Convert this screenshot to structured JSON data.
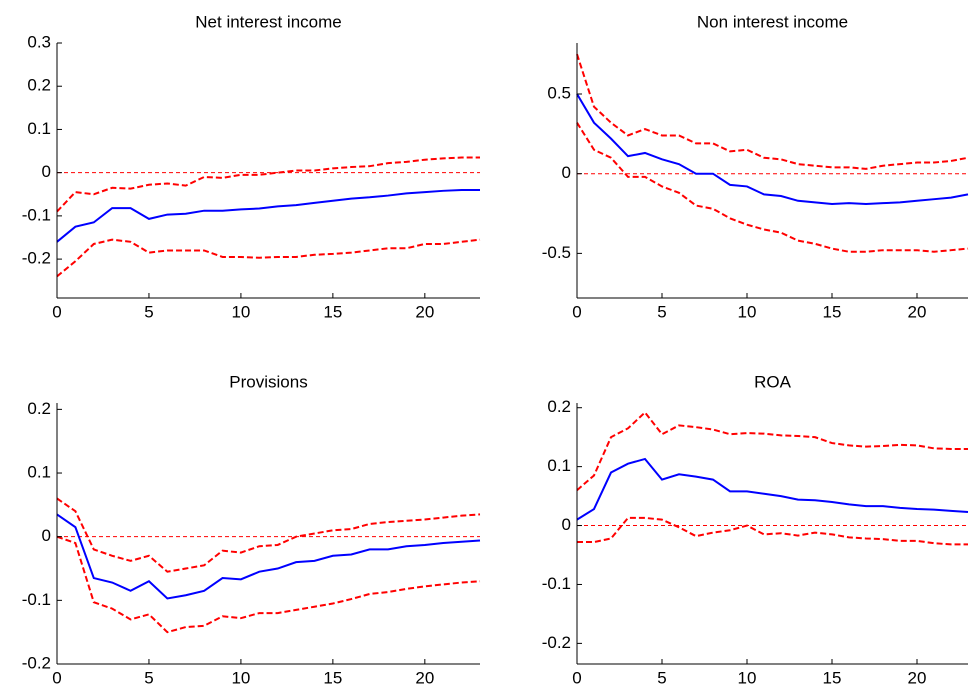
{
  "chart_data": [
    {
      "type": "line",
      "title": "Net interest income",
      "x": [
        0,
        1,
        2,
        3,
        4,
        5,
        6,
        7,
        8,
        9,
        10,
        11,
        12,
        13,
        14,
        15,
        16,
        17,
        18,
        19,
        20,
        21,
        22,
        23
      ],
      "xlim": [
        0,
        23
      ],
      "xticks": [
        0,
        5,
        10,
        15,
        20
      ],
      "ylim": [
        -0.29,
        0.3
      ],
      "yticks": [
        0.3,
        0.2,
        0.1,
        0,
        -0.1,
        -0.2
      ],
      "zero_line": {
        "value": 0,
        "color": "#ff0000",
        "dash": true
      },
      "series": [
        {
          "color": "#0000ff",
          "dash": false,
          "values": [
            -0.16,
            -0.125,
            -0.115,
            -0.082,
            -0.082,
            -0.107,
            -0.097,
            -0.095,
            -0.088,
            -0.088,
            -0.085,
            -0.083,
            -0.078,
            -0.075,
            -0.07,
            -0.065,
            -0.06,
            -0.057,
            -0.053,
            -0.048,
            -0.045,
            -0.042,
            -0.04,
            -0.04
          ]
        },
        {
          "color": "#ff0000",
          "dash": true,
          "values": [
            -0.09,
            -0.045,
            -0.05,
            -0.035,
            -0.037,
            -0.028,
            -0.025,
            -0.03,
            -0.01,
            -0.012,
            -0.005,
            -0.005,
            0,
            0.005,
            0.005,
            0.01,
            0.013,
            0.015,
            0.022,
            0.025,
            0.03,
            0.033,
            0.035,
            0.035
          ]
        },
        {
          "color": "#ff0000",
          "dash": true,
          "values": [
            -0.24,
            -0.205,
            -0.165,
            -0.155,
            -0.16,
            -0.185,
            -0.18,
            -0.18,
            -0.18,
            -0.195,
            -0.195,
            -0.197,
            -0.195,
            -0.195,
            -0.19,
            -0.188,
            -0.185,
            -0.18,
            -0.175,
            -0.175,
            -0.165,
            -0.165,
            -0.16,
            -0.155
          ]
        }
      ]
    },
    {
      "type": "line",
      "title": "Non interest income",
      "x": [
        0,
        1,
        2,
        3,
        4,
        5,
        6,
        7,
        8,
        9,
        10,
        11,
        12,
        13,
        14,
        15,
        16,
        17,
        18,
        19,
        20,
        21,
        22,
        23
      ],
      "xlim": [
        0,
        23
      ],
      "xticks": [
        0,
        5,
        10,
        15,
        20
      ],
      "ylim": [
        -0.78,
        0.82
      ],
      "yticks": [
        0.5,
        0,
        -0.5
      ],
      "zero_line": {
        "value": 0,
        "color": "#ff0000",
        "dash": true
      },
      "series": [
        {
          "color": "#0000ff",
          "dash": false,
          "values": [
            0.5,
            0.32,
            0.22,
            0.11,
            0.13,
            0.09,
            0.06,
            0,
            0,
            -0.07,
            -0.08,
            -0.13,
            -0.14,
            -0.17,
            -0.18,
            -0.19,
            -0.185,
            -0.19,
            -0.185,
            -0.18,
            -0.17,
            -0.16,
            -0.15,
            -0.13
          ]
        },
        {
          "color": "#ff0000",
          "dash": true,
          "values": [
            0.75,
            0.42,
            0.32,
            0.24,
            0.28,
            0.24,
            0.24,
            0.19,
            0.19,
            0.14,
            0.15,
            0.1,
            0.09,
            0.06,
            0.05,
            0.04,
            0.04,
            0.03,
            0.05,
            0.06,
            0.07,
            0.07,
            0.08,
            0.1
          ]
        },
        {
          "color": "#ff0000",
          "dash": true,
          "values": [
            0.32,
            0.15,
            0.1,
            -0.02,
            -0.02,
            -0.08,
            -0.12,
            -0.2,
            -0.22,
            -0.28,
            -0.32,
            -0.35,
            -0.37,
            -0.42,
            -0.44,
            -0.47,
            -0.49,
            -0.49,
            -0.48,
            -0.48,
            -0.48,
            -0.49,
            -0.48,
            -0.47
          ]
        }
      ]
    },
    {
      "type": "line",
      "title": "Provisions",
      "x": [
        0,
        1,
        2,
        3,
        4,
        5,
        6,
        7,
        8,
        9,
        10,
        11,
        12,
        13,
        14,
        15,
        16,
        17,
        18,
        19,
        20,
        21,
        22,
        23
      ],
      "xlim": [
        0,
        23
      ],
      "xticks": [
        0,
        5,
        10,
        15,
        20
      ],
      "ylim": [
        -0.2,
        0.21
      ],
      "yticks": [
        0.2,
        0.1,
        0,
        -0.1,
        -0.2
      ],
      "zero_line": {
        "value": 0,
        "color": "#ff0000",
        "dash": true
      },
      "series": [
        {
          "color": "#0000ff",
          "dash": false,
          "values": [
            0.035,
            0.015,
            -0.065,
            -0.072,
            -0.085,
            -0.07,
            -0.097,
            -0.092,
            -0.085,
            -0.065,
            -0.067,
            -0.055,
            -0.05,
            -0.04,
            -0.038,
            -0.03,
            -0.028,
            -0.02,
            -0.02,
            -0.015,
            -0.013,
            -0.01,
            -0.008,
            -0.006
          ]
        },
        {
          "color": "#ff0000",
          "dash": true,
          "values": [
            0.06,
            0.04,
            -0.02,
            -0.03,
            -0.038,
            -0.03,
            -0.055,
            -0.05,
            -0.045,
            -0.022,
            -0.025,
            -0.015,
            -0.013,
            0,
            0.005,
            0.01,
            0.012,
            0.02,
            0.023,
            0.025,
            0.027,
            0.03,
            0.033,
            0.035
          ]
        },
        {
          "color": "#ff0000",
          "dash": true,
          "values": [
            0,
            -0.01,
            -0.103,
            -0.113,
            -0.13,
            -0.122,
            -0.15,
            -0.142,
            -0.14,
            -0.125,
            -0.128,
            -0.12,
            -0.12,
            -0.115,
            -0.11,
            -0.105,
            -0.098,
            -0.09,
            -0.087,
            -0.082,
            -0.078,
            -0.075,
            -0.072,
            -0.07
          ]
        }
      ]
    },
    {
      "type": "line",
      "title": "ROA",
      "x": [
        0,
        1,
        2,
        3,
        4,
        5,
        6,
        7,
        8,
        9,
        10,
        11,
        12,
        13,
        14,
        15,
        16,
        17,
        18,
        19,
        20,
        21,
        22,
        23
      ],
      "xlim": [
        0,
        23
      ],
      "xticks": [
        0,
        5,
        10,
        15,
        20
      ],
      "ylim": [
        -0.235,
        0.208
      ],
      "yticks": [
        0.2,
        0.1,
        0,
        -0.1,
        -0.2
      ],
      "zero_line": {
        "value": 0,
        "color": "#ff0000",
        "dash": true
      },
      "series": [
        {
          "color": "#0000ff",
          "dash": false,
          "values": [
            0.01,
            0.028,
            0.09,
            0.105,
            0.113,
            0.078,
            0.087,
            0.083,
            0.078,
            0.058,
            0.058,
            0.054,
            0.05,
            0.044,
            0.043,
            0.04,
            0.036,
            0.033,
            0.033,
            0.03,
            0.028,
            0.027,
            0.025,
            0.023
          ]
        },
        {
          "color": "#ff0000",
          "dash": true,
          "values": [
            0.06,
            0.085,
            0.15,
            0.165,
            0.192,
            0.155,
            0.17,
            0.167,
            0.163,
            0.155,
            0.157,
            0.156,
            0.153,
            0.152,
            0.15,
            0.14,
            0.136,
            0.134,
            0.135,
            0.137,
            0.136,
            0.131,
            0.13,
            0.13
          ]
        },
        {
          "color": "#ff0000",
          "dash": true,
          "values": [
            -0.028,
            -0.028,
            -0.022,
            0.013,
            0.013,
            0.01,
            -0.003,
            -0.018,
            -0.012,
            -0.008,
            0,
            -0.015,
            -0.013,
            -0.017,
            -0.012,
            -0.015,
            -0.02,
            -0.022,
            -0.023,
            -0.026,
            -0.026,
            -0.03,
            -0.032,
            -0.032
          ]
        }
      ]
    }
  ]
}
